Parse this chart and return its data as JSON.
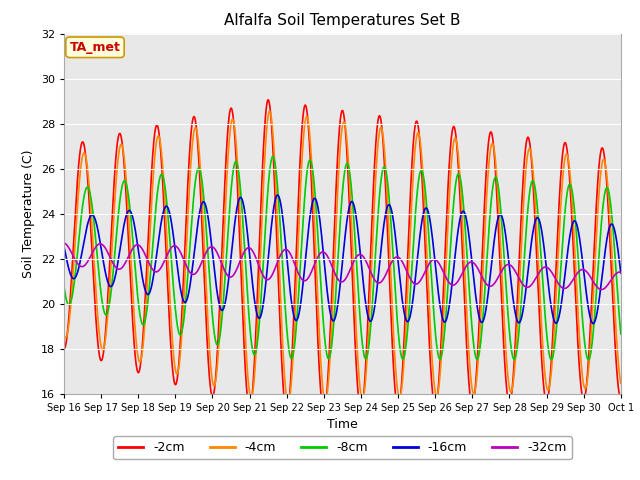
{
  "title": "Alfalfa Soil Temperatures Set B",
  "xlabel": "Time",
  "ylabel": "Soil Temperature (C)",
  "ylim": [
    16,
    32
  ],
  "background_color": "#e8e8e8",
  "grid_color": "white",
  "annotation_text": "TA_met",
  "annotation_color": "#cc0000",
  "annotation_bg": "#ffffdd",
  "annotation_border": "#cc9900",
  "x_tick_labels": [
    "Sep 16",
    "Sep 17",
    "Sep 18",
    "Sep 19",
    "Sep 20",
    "Sep 21",
    "Sep 22",
    "Sep 23",
    "Sep 24",
    "Sep 25",
    "Sep 26",
    "Sep 27",
    "Sep 28",
    "Sep 29",
    "Sep 30",
    "Oct 1"
  ],
  "legend_labels": [
    "-2cm",
    "-4cm",
    "-8cm",
    "-16cm",
    "-32cm"
  ],
  "line_colors": [
    "#ff0000",
    "#ff8800",
    "#00cc00",
    "#0000dd",
    "#bb00bb"
  ],
  "figsize": [
    6.4,
    4.8
  ],
  "dpi": 100
}
